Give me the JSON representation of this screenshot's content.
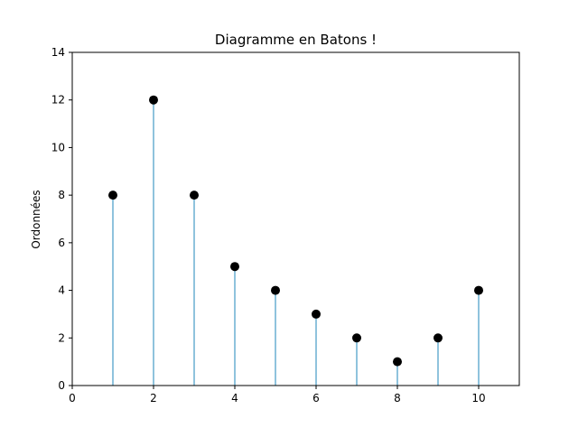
{
  "chart_data": {
    "type": "stem",
    "title": "Diagramme en Batons !",
    "xlabel": "",
    "ylabel": "Ordonnées",
    "x": [
      1,
      2,
      3,
      4,
      5,
      6,
      7,
      8,
      9,
      10
    ],
    "y": [
      8,
      12,
      8,
      5,
      4,
      3,
      2,
      1,
      2,
      4
    ],
    "xlim": [
      0,
      11
    ],
    "ylim": [
      0,
      14
    ],
    "xticks": [
      0,
      2,
      4,
      6,
      8,
      10
    ],
    "yticks": [
      0,
      2,
      4,
      6,
      8,
      10,
      12,
      14
    ],
    "grid": false,
    "colors": {
      "stem": "#8fc3dd",
      "marker": "#000000",
      "axes": "#000000"
    }
  }
}
